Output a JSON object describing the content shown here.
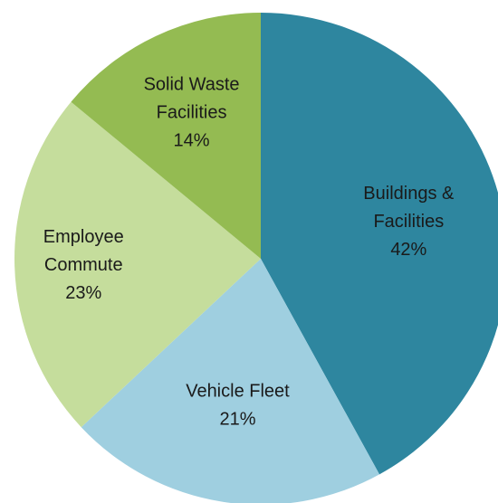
{
  "chart_data": {
    "type": "pie",
    "start_angle_deg": 0,
    "direction": "clockwise",
    "slices": [
      {
        "label_lines": [
          "Buildings &",
          "Facilities"
        ],
        "value": 42,
        "value_label": "42%",
        "color": "#2e869f"
      },
      {
        "label_lines": [
          "Vehicle Fleet"
        ],
        "value": 21,
        "value_label": "21%",
        "color": "#9fcfe0"
      },
      {
        "label_lines": [
          "Employee",
          "Commute"
        ],
        "value": 23,
        "value_label": "23%",
        "color": "#c5dd9c"
      },
      {
        "label_lines": [
          "Solid Waste",
          "Facilities"
        ],
        "value": 14,
        "value_label": "14%",
        "color": "#94bb52"
      }
    ]
  }
}
